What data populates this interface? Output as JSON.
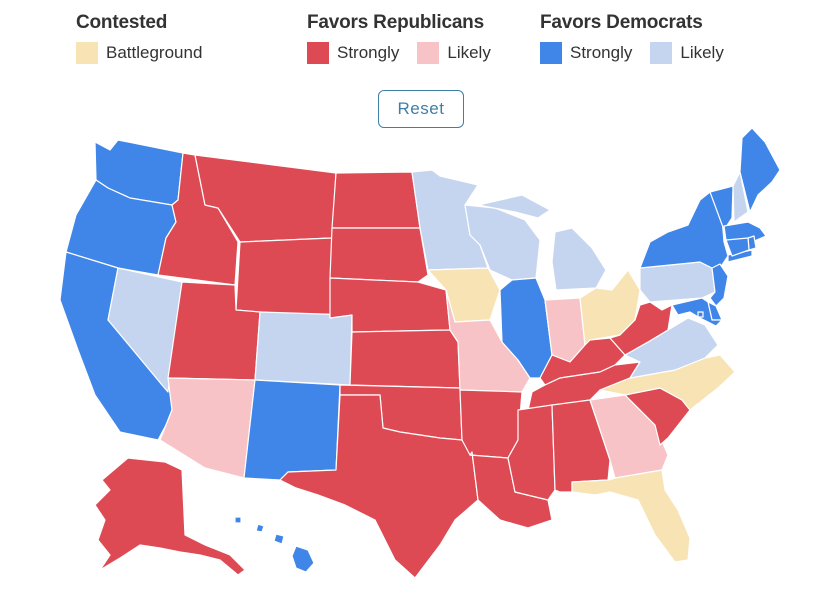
{
  "legend": {
    "contested": {
      "title": "Contested",
      "items": [
        {
          "label": "Battleground",
          "color": "#f8e3b5"
        }
      ]
    },
    "republicans": {
      "title": "Favors Republicans",
      "items": [
        {
          "label": "Strongly",
          "color": "#de4a54"
        },
        {
          "label": "Likely",
          "color": "#f8c3c6"
        }
      ]
    },
    "democrats": {
      "title": "Favors Democrats",
      "items": [
        {
          "label": "Strongly",
          "color": "#3f86e8"
        },
        {
          "label": "Likely",
          "color": "#c5d4ef"
        }
      ]
    }
  },
  "reset_label": "Reset",
  "categories": {
    "rep_strong": "#de4a54",
    "rep_likely": "#f8c3c6",
    "dem_strong": "#3f86e8",
    "dem_likely": "#c5d4ef",
    "battleground": "#f8e3b5"
  },
  "states": {
    "WA": "dem_strong",
    "OR": "dem_strong",
    "CA": "dem_strong",
    "NV": "dem_likely",
    "ID": "rep_strong",
    "MT": "rep_strong",
    "WY": "rep_strong",
    "UT": "rep_strong",
    "AZ": "rep_likely",
    "CO": "dem_likely",
    "NM": "dem_strong",
    "ND": "rep_strong",
    "SD": "rep_strong",
    "NE": "rep_strong",
    "KS": "rep_strong",
    "OK": "rep_strong",
    "TX": "rep_strong",
    "MN": "dem_likely",
    "IA": "battleground",
    "MO": "rep_likely",
    "AR": "rep_strong",
    "LA": "rep_strong",
    "WI": "dem_likely",
    "IL": "dem_strong",
    "MI": "dem_likely",
    "IN": "rep_likely",
    "OH": "battleground",
    "KY": "rep_strong",
    "TN": "rep_strong",
    "MS": "rep_strong",
    "AL": "rep_strong",
    "GA": "rep_likely",
    "FL": "battleground",
    "SC": "rep_strong",
    "NC": "battleground",
    "VA": "dem_likely",
    "WV": "rep_strong",
    "PA": "dem_likely",
    "NY": "dem_strong",
    "VT": "dem_strong",
    "NH": "dem_likely",
    "ME": "dem_strong",
    "MA": "dem_strong",
    "RI": "dem_strong",
    "CT": "dem_strong",
    "NJ": "dem_strong",
    "DE": "dem_strong",
    "MD": "dem_strong",
    "DC": "dem_strong",
    "AK": "rep_strong",
    "HI": "dem_strong"
  }
}
